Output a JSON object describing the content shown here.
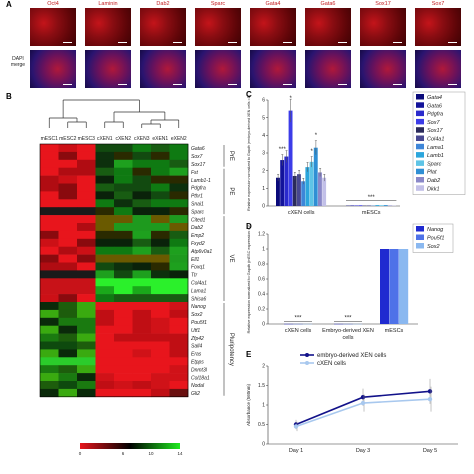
{
  "panels": {
    "A": "A",
    "B": "B",
    "C": "C",
    "D": "D",
    "E": "E"
  },
  "panel_a": {
    "markers": [
      "Oct4",
      "Laminin",
      "Dab2",
      "Sparc",
      "Gata4",
      "Gata6",
      "Sox17",
      "Sox7"
    ],
    "row_label_line1": "DAPI",
    "row_label_line2": "merge"
  },
  "panel_b": {
    "columns": [
      "mESC1",
      "mESC2",
      "mESC3",
      "cXEN1",
      "cXEN2",
      "cXEN3",
      "eXEN1",
      "eXEN2"
    ],
    "genes": [
      "Gata6",
      "Sox7",
      "Sox17",
      "Fst",
      "Lamb1-1",
      "Pdgfra",
      "Pthr1",
      "Snai1",
      "Sparc",
      "Cited1",
      "Dab2",
      "Emp2",
      "Fxyd2",
      "Atp6v0a1",
      "Ell1",
      "Foxq1",
      "Ttr",
      "Col4a1",
      "Lama1",
      "Shisa6",
      "Nanog",
      "Sox2",
      "Pou5f1",
      "Utf1",
      "Zfp42",
      "Sall4",
      "Eras",
      "Etpps",
      "Dnmt3l",
      "Col18a1",
      "Nodal",
      "Gli2"
    ],
    "groups": [
      {
        "label": "PrE",
        "start": 0,
        "end": 2
      },
      {
        "label": "PE",
        "start": 3,
        "end": 8
      },
      {
        "label": "VE",
        "start": 9,
        "end": 19
      },
      {
        "label": "Pluripotency",
        "start": 20,
        "end": 31
      }
    ],
    "colorbar_ticks": [
      "0",
      "6",
      "10",
      "14"
    ],
    "colors": {
      "low": "#e8151c",
      "mid": "#000000",
      "high": "#1eea1e"
    }
  },
  "chart_data": [
    {
      "panel": "C",
      "type": "bar",
      "categories": [
        "cXEN cells",
        "mESCs"
      ],
      "series": [
        {
          "name": "Gata4",
          "values": [
            1.6,
            0.02
          ]
        },
        {
          "name": "Gata6",
          "values": [
            2.6,
            0.03
          ]
        },
        {
          "name": "Pdgfra",
          "values": [
            2.8,
            0.03
          ]
        },
        {
          "name": "Sox7",
          "values": [
            5.4,
            0.04
          ]
        },
        {
          "name": "Sox17",
          "values": [
            1.7,
            0.02
          ]
        },
        {
          "name": "Col4a1",
          "values": [
            1.8,
            0.03
          ]
        },
        {
          "name": "Lama1",
          "values": [
            1.4,
            0.02
          ]
        },
        {
          "name": "Lamb1",
          "values": [
            2.2,
            0.05
          ]
        },
        {
          "name": "Sparc",
          "values": [
            2.5,
            0.04
          ]
        },
        {
          "name": "Plat",
          "values": [
            3.3,
            0.05
          ]
        },
        {
          "name": "Dab2",
          "values": [
            1.9,
            0.03
          ]
        },
        {
          "name": "Dkk1",
          "values": [
            1.6,
            0.02
          ]
        }
      ],
      "colors": [
        "#0a0a7a",
        "#13139a",
        "#2a2acc",
        "#3c3ce8",
        "#2a2a5a",
        "#474790",
        "#3e86d8",
        "#2ca6dc",
        "#5ec4e6",
        "#2f8fd4",
        "#8a88c8",
        "#c2c0e8"
      ],
      "ylabel": "Relative expression normalized to Gapdh (embryo-derived XEN cells =1)",
      "ylim": [
        0,
        6
      ],
      "yticks": [
        "0",
        "1",
        "2",
        "3",
        "4",
        "5",
        "6"
      ],
      "annotations": [
        "***",
        "*",
        "*",
        "*",
        "***"
      ]
    },
    {
      "panel": "D",
      "type": "bar",
      "categories": [
        "cXEN cells",
        "Embryo-derived XEN cells",
        "mESCs"
      ],
      "series": [
        {
          "name": "Nanog",
          "values": [
            0.002,
            0.002,
            1.0
          ]
        },
        {
          "name": "Pou5f1",
          "values": [
            0.002,
            0.002,
            1.0
          ]
        },
        {
          "name": "Sox2",
          "values": [
            0.002,
            0.002,
            1.0
          ]
        }
      ],
      "colors": [
        "#1f2ad0",
        "#4e72e8",
        "#8ab8f0"
      ],
      "ylabel": "Relative expression normalized to Gapdh (mESC expression =1)",
      "ylim": [
        0,
        1.2
      ],
      "yticks": [
        "0",
        "0.2",
        "0.4",
        "0.6",
        "0.8",
        "1",
        "1.2"
      ],
      "annotations": [
        "***",
        "***"
      ]
    },
    {
      "panel": "E",
      "type": "line",
      "x": [
        "Day 1",
        "Day 3",
        "Day 5"
      ],
      "series": [
        {
          "name": "embryo-derived XEN cells",
          "values": [
            0.5,
            1.2,
            1.35
          ]
        },
        {
          "name": "cXEN cells",
          "values": [
            0.45,
            1.05,
            1.15
          ]
        }
      ],
      "colors": [
        "#12128a",
        "#a8c8ee"
      ],
      "ylabel": "Absorbance (560nm)",
      "ylim": [
        0,
        2
      ],
      "yticks": [
        "0",
        "0.5",
        "1",
        "1.5",
        "2"
      ]
    }
  ]
}
